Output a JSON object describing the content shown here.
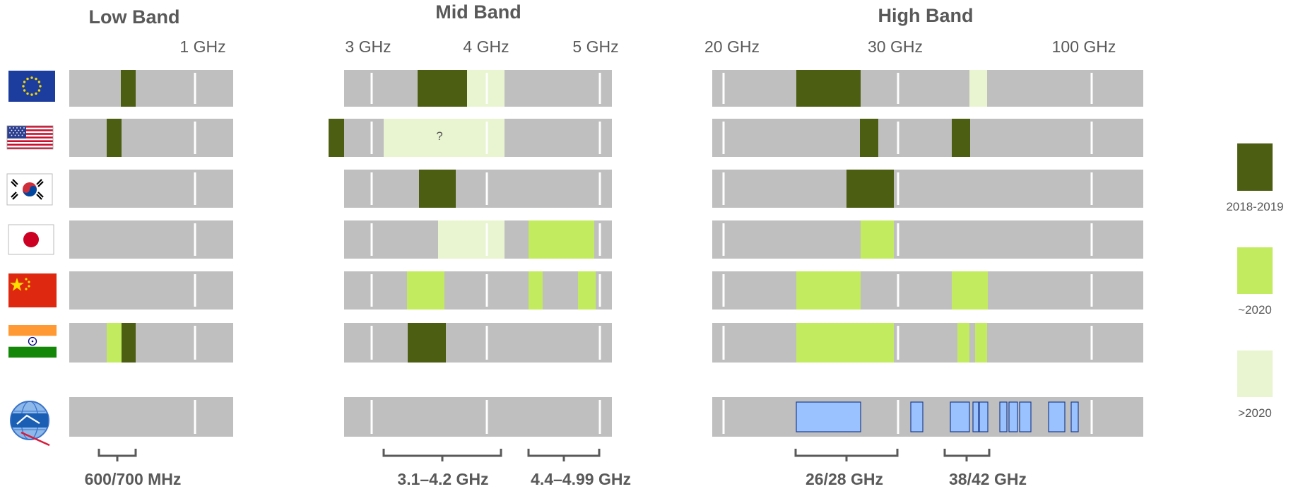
{
  "bands": [
    {
      "key": "low",
      "title": "Low Band",
      "ticks": [
        "1 GHz"
      ],
      "range_labels": [
        "600/700 MHz"
      ]
    },
    {
      "key": "mid",
      "title": "Mid Band",
      "ticks": [
        "3 GHz",
        "4 GHz",
        "5 GHz"
      ],
      "range_labels": [
        "3.1–4.2 GHz",
        "4.4–4.99 GHz"
      ],
      "annotation": "?"
    },
    {
      "key": "high",
      "title": "High Band",
      "ticks": [
        "20 GHz",
        "30 GHz",
        "100 GHz"
      ],
      "range_labels": [
        "26/28 GHz",
        "38/42 GHz"
      ]
    }
  ],
  "rows": [
    {
      "key": "eu",
      "flag": "eu-flag-icon"
    },
    {
      "key": "us",
      "flag": "us-flag-icon"
    },
    {
      "key": "kr",
      "flag": "south-korea-flag-icon"
    },
    {
      "key": "jp",
      "flag": "japan-flag-icon"
    },
    {
      "key": "cn",
      "flag": "china-flag-icon"
    },
    {
      "key": "in",
      "flag": "india-flag-icon"
    },
    {
      "key": "itu",
      "flag": "itu-logo-icon"
    }
  ],
  "legend": [
    {
      "key": "dark",
      "label": "2018-2019",
      "color": "#4b5e12"
    },
    {
      "key": "mid",
      "label": "~2020",
      "color": "#c2eb5f"
    },
    {
      "key": "light",
      "label": ">2020",
      "color": "#e8f5d0"
    }
  ],
  "colors": {
    "lane": "#bfbfbf",
    "itu_block": "#99c2ff",
    "itu_block_border": "#1f3f8f",
    "text": "#595959"
  }
}
